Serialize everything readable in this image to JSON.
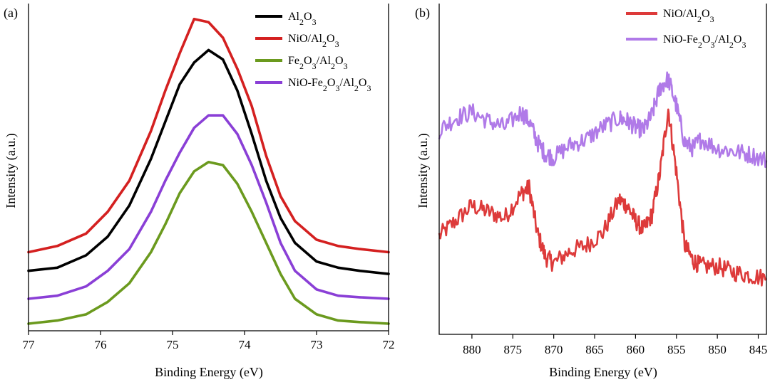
{
  "chart_data": [
    {
      "panel_label": "(a)",
      "type": "line",
      "xlabel": "Binding Energy (eV)",
      "ylabel": "Intensity (a.u.)",
      "xlim": [
        77,
        72
      ],
      "ylim": [
        0,
        1
      ],
      "x_ticks": [
        "77",
        "76",
        "75",
        "74",
        "73",
        "72"
      ],
      "x": [
        77.0,
        76.6,
        76.2,
        75.9,
        75.6,
        75.3,
        75.1,
        74.9,
        74.7,
        74.5,
        74.3,
        74.1,
        73.9,
        73.7,
        73.5,
        73.3,
        73.0,
        72.7,
        72.4,
        72.0
      ],
      "series": [
        {
          "name": "Al2O3",
          "color": "#000000",
          "values": [
            0.17,
            0.18,
            0.22,
            0.28,
            0.38,
            0.53,
            0.65,
            0.77,
            0.84,
            0.88,
            0.85,
            0.75,
            0.61,
            0.46,
            0.34,
            0.26,
            0.2,
            0.18,
            0.17,
            0.16
          ]
        },
        {
          "name": "NiO/Al2O3",
          "color": "#d42020",
          "values": [
            0.23,
            0.25,
            0.29,
            0.36,
            0.46,
            0.62,
            0.75,
            0.87,
            0.98,
            0.97,
            0.92,
            0.82,
            0.7,
            0.54,
            0.41,
            0.33,
            0.27,
            0.25,
            0.24,
            0.23
          ]
        },
        {
          "name": "Fe2O3/Al2O3",
          "color": "#6b9a1e",
          "values": [
            0.0,
            0.01,
            0.03,
            0.07,
            0.13,
            0.23,
            0.32,
            0.42,
            0.49,
            0.52,
            0.51,
            0.45,
            0.36,
            0.26,
            0.16,
            0.08,
            0.03,
            0.01,
            0.005,
            0.0
          ]
        },
        {
          "name": "NiO-Fe2O3/Al2O3",
          "color": "#8a3fd6",
          "values": [
            0.08,
            0.09,
            0.12,
            0.17,
            0.24,
            0.36,
            0.46,
            0.55,
            0.63,
            0.67,
            0.67,
            0.61,
            0.51,
            0.39,
            0.26,
            0.17,
            0.11,
            0.09,
            0.085,
            0.08
          ]
        }
      ],
      "legend": {
        "position": "top-right",
        "entries": [
          {
            "base": "Al",
            "sub": "2",
            "mid": "O",
            "sub2": "3",
            "tail": ""
          },
          {
            "base": "NiO/Al",
            "sub": "2",
            "mid": "O",
            "sub2": "3",
            "tail": ""
          },
          {
            "base": "Fe",
            "sub": "2",
            "mid": "O",
            "sub2": "3",
            "tail": "/Al2O3"
          },
          {
            "base": "NiO-Fe",
            "sub": "2",
            "mid": "O",
            "sub2": "3",
            "tail": "/Al2O3"
          }
        ]
      }
    },
    {
      "panel_label": "(b)",
      "type": "line",
      "xlabel": "Binding Energy (eV)",
      "ylabel": "Intensity (a.u.)",
      "xlim": [
        884,
        844
      ],
      "ylim": [
        0,
        1
      ],
      "x_ticks": [
        "880",
        "875",
        "870",
        "865",
        "860",
        "855",
        "850",
        "845"
      ],
      "x": [
        884,
        882,
        880,
        878,
        876,
        874,
        873,
        872,
        871,
        870,
        868,
        866,
        864,
        862,
        861,
        860,
        859,
        858,
        857,
        856,
        855,
        854,
        853,
        852,
        850,
        848,
        846,
        844
      ],
      "series": [
        {
          "name": "NiO/Al2O3",
          "color": "#dd3a3a",
          "values": [
            0.29,
            0.34,
            0.39,
            0.37,
            0.35,
            0.43,
            0.45,
            0.3,
            0.22,
            0.2,
            0.24,
            0.26,
            0.3,
            0.41,
            0.39,
            0.34,
            0.31,
            0.36,
            0.5,
            0.71,
            0.5,
            0.26,
            0.21,
            0.19,
            0.19,
            0.17,
            0.16,
            0.15
          ]
        },
        {
          "name": "NiO-Fe2O3/Al2O3",
          "color": "#b07ae8",
          "values": [
            0.64,
            0.68,
            0.7,
            0.67,
            0.65,
            0.7,
            0.67,
            0.6,
            0.56,
            0.55,
            0.59,
            0.61,
            0.65,
            0.68,
            0.67,
            0.65,
            0.64,
            0.69,
            0.78,
            0.81,
            0.72,
            0.6,
            0.58,
            0.61,
            0.58,
            0.57,
            0.56,
            0.54
          ]
        }
      ],
      "legend": {
        "position": "top-right",
        "entries": [
          {
            "base": "NiO/Al",
            "sub": "2",
            "mid": "O",
            "sub2": "3",
            "tail": ""
          },
          {
            "base": "NiO-Fe",
            "sub": "2",
            "mid": "O",
            "sub2": "3",
            "tail": "/Al2O3"
          }
        ]
      }
    }
  ]
}
